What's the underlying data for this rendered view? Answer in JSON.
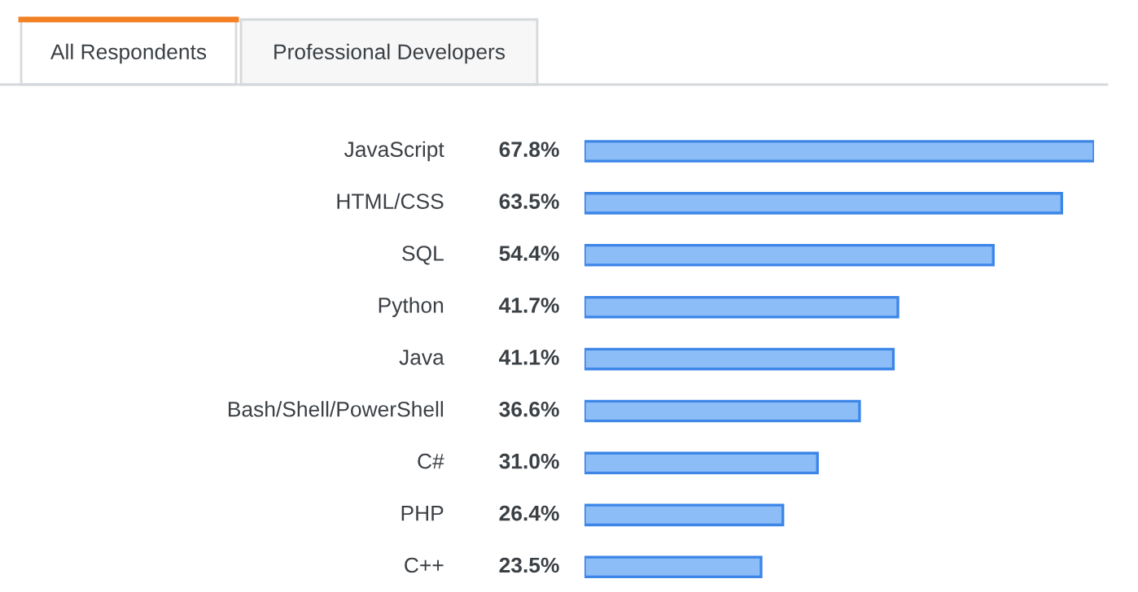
{
  "chart_data": {
    "type": "bar",
    "orientation": "horizontal",
    "categories": [
      "JavaScript",
      "HTML/CSS",
      "SQL",
      "Python",
      "Java",
      "Bash/Shell/PowerShell",
      "C#",
      "PHP",
      "C++"
    ],
    "values": [
      67.8,
      63.5,
      54.4,
      41.7,
      41.1,
      36.6,
      31.0,
      26.4,
      23.5
    ],
    "value_labels": [
      "67.8%",
      "63.5%",
      "54.4%",
      "41.7%",
      "41.1%",
      "36.6%",
      "31.0%",
      "26.4%",
      "23.5%"
    ],
    "color": "#8cbdf7",
    "annotations": [
      "All Respondents",
      "Professional Developers"
    ]
  }
}
